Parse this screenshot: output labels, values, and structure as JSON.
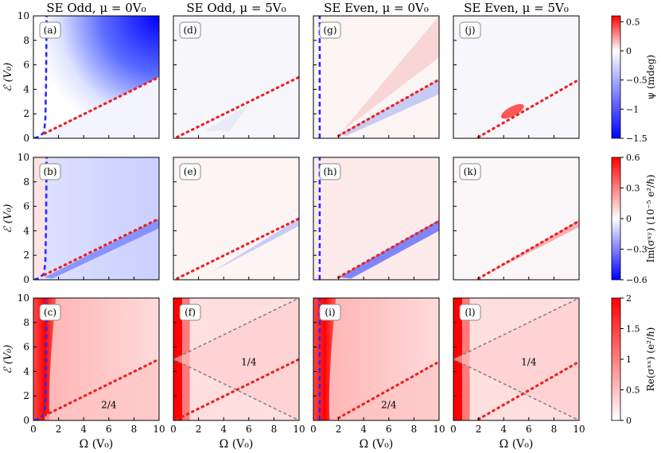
{
  "chart_data": {
    "type": "heatmap",
    "layout": "3 rows x 4 columns grid of heatmap panels with shared axes",
    "column_titles": [
      "SE Odd,  μ = 0V₀",
      "SE Odd,  μ = 5V₀",
      "SE Even,  μ = 0V₀",
      "SE Even,  μ = 5V₀"
    ],
    "xlabel": "Ω (V₀)",
    "ylabel": "ℰ (V₀)",
    "xlim": [
      0,
      10
    ],
    "ylim": [
      0,
      10
    ],
    "xticks": [
      "0",
      "2",
      "4",
      "6",
      "8",
      "10"
    ],
    "yticks": [
      "0",
      "2",
      "4",
      "6",
      "8",
      "10"
    ],
    "panel_labels": [
      [
        "(a)",
        "(d)",
        "(g)",
        "(j)"
      ],
      [
        "(b)",
        "(e)",
        "(h)",
        "(k)"
      ],
      [
        "(c)",
        "(f)",
        "(i)",
        "(l)"
      ]
    ],
    "colorbars": [
      {
        "label": "ψ (mdeg)",
        "range": [
          -1.5,
          0.6
        ],
        "ticks": [
          "0.5",
          "0",
          "−0.5",
          "−1",
          "−1.5"
        ],
        "tick_values": [
          0.5,
          0,
          -0.5,
          -1,
          -1.5
        ],
        "colormap": "blue-white-red diverging"
      },
      {
        "label": "Im(σˣʸ) (10⁻⁵ e²/ℏ)",
        "range": [
          -0.6,
          0.6
        ],
        "ticks": [
          "0.6",
          "0.3",
          "0",
          "−0.3",
          "−0.6"
        ],
        "tick_values": [
          0.6,
          0.3,
          0,
          -0.3,
          -0.6
        ],
        "colormap": "blue-white-red diverging"
      },
      {
        "label": "Re(σˣˣ) (e²/ℏ)",
        "range": [
          0,
          2
        ],
        "ticks": [
          "2",
          "1.5",
          "1",
          "0.5",
          "0"
        ],
        "tick_values": [
          2,
          1.5,
          1,
          0.5,
          0
        ],
        "colormap": "white-red sequential"
      }
    ],
    "overlays": {
      "red_dotted_line_mu0": "from (0.9, 0.4) to (10, 5.0)",
      "red_dotted_line_mu5": "from (0.3, 0.1) to (10, 5.0)",
      "red_dotted_line_even_mu0": "from (2.0, 0.2) to (10, 4.8)",
      "red_dotted_line_even_mu5": "from (2.0, 0.1) to (10, 4.8)",
      "blue_dashed_line_odd": "near Ω ≈ 1, from ℰ = 0 up to 10",
      "blue_dashed_line_even": "vertical at Ω ≈ 0.5",
      "gray_dashed_lines": "from (0, 5) to (10, 10) and from (0, 5) to (10, 0)"
    },
    "region_annotations": [
      {
        "panel": "(c)",
        "text": "2/4",
        "at": [
          6.0,
          1.0
        ]
      },
      {
        "panel": "(f)",
        "text": "1/4",
        "at": [
          6.0,
          4.5
        ]
      },
      {
        "panel": "(i)",
        "text": "2/4",
        "at": [
          6.0,
          1.0
        ]
      },
      {
        "panel": "(l)",
        "text": "1/4",
        "at": [
          6.0,
          4.5
        ]
      }
    ]
  }
}
